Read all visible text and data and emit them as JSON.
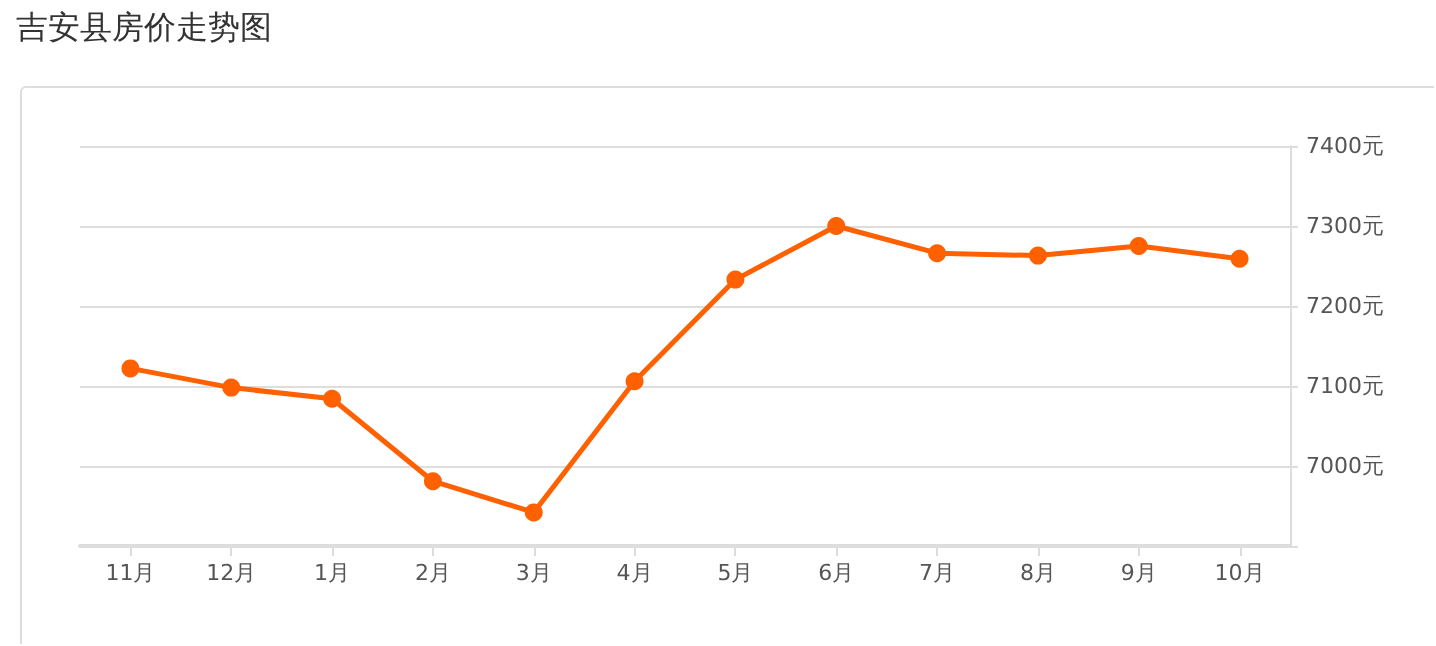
{
  "chart_data": {
    "type": "line",
    "title": "吉安县房价走势图",
    "categories": [
      "11月",
      "12月",
      "1月",
      "2月",
      "3月",
      "4月",
      "5月",
      "6月",
      "7月",
      "8月",
      "9月",
      "10月"
    ],
    "series": [
      {
        "color": "#ff6000",
        "values": [
          7122,
          7098,
          7084,
          6981,
          6942,
          7106,
          7233,
          7300,
          7266,
          7263,
          7275,
          7259
        ]
      }
    ],
    "ylim": [
      6900,
      7400
    ],
    "yticks": [
      {
        "value": 6900,
        "label": null
      },
      {
        "value": 7000,
        "label": "7000元"
      },
      {
        "value": 7100,
        "label": "7100元"
      },
      {
        "value": 7200,
        "label": "7200元"
      },
      {
        "value": 7300,
        "label": "7300元"
      },
      {
        "value": 7400,
        "label": "7400元"
      }
    ],
    "grid": "y",
    "marker": "circle",
    "line_style": "solid"
  }
}
